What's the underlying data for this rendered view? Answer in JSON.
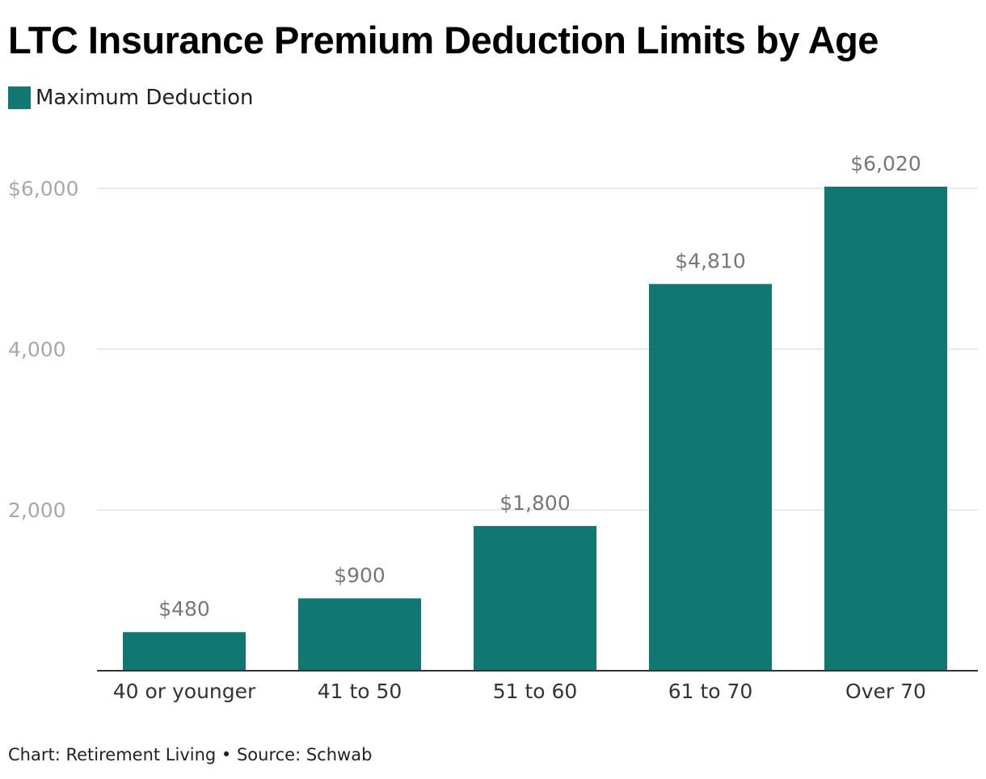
{
  "title": "LTC Insurance Premium Deduction Limits by Age",
  "legend": {
    "label": "Maximum Deduction"
  },
  "footer": {
    "text": "Chart: Retirement Living • Source: Schwab"
  },
  "colors": {
    "bar": "#117773",
    "grid": "#e3e3e3",
    "axis": "#333333"
  },
  "chart_data": {
    "type": "bar",
    "categories": [
      "40 or younger",
      "41 to 50",
      "51 to 60",
      "61 to 70",
      "Over 70"
    ],
    "series": [
      {
        "name": "Maximum Deduction",
        "values": [
          480,
          900,
          1800,
          4810,
          6020
        ]
      }
    ],
    "data_labels": [
      "$480",
      "$900",
      "$1,800",
      "$4,810",
      "$6,020"
    ],
    "y_ticks": [
      {
        "value": 2000,
        "label": "2,000"
      },
      {
        "value": 4000,
        "label": "4,000"
      },
      {
        "value": 6000,
        "label": "$6,000"
      }
    ],
    "ylim": [
      0,
      6000
    ],
    "grid": true,
    "legend_position": "top-left"
  }
}
